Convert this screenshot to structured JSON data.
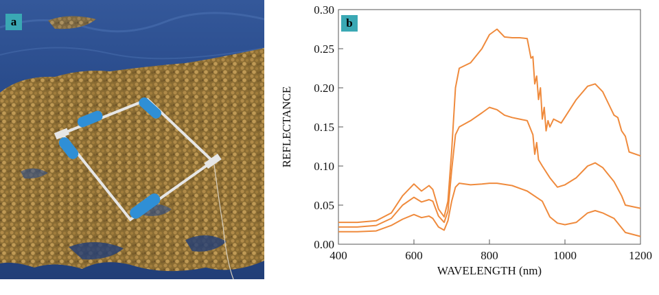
{
  "panels": {
    "a": {
      "label": "a"
    },
    "b": {
      "label": "b"
    }
  },
  "colors": {
    "series": "#ef8a3c",
    "label_bg": "#3aa8b4",
    "water": "#2a4f8f",
    "sargassum": "#9a7a3a",
    "float": "#2f8fd6",
    "frame": "#d9d9d9"
  },
  "chart_data": {
    "type": "line",
    "xlabel": "WAVELENGTH (nm)",
    "ylabel": "REFLECTANCE",
    "xlim": [
      400,
      1200
    ],
    "ylim": [
      0,
      0.3
    ],
    "xticks": [
      400,
      600,
      800,
      1000,
      1200
    ],
    "xtick_labels": [
      "400",
      "600",
      "800",
      "1000",
      "1200"
    ],
    "yticks": [
      0,
      0.05,
      0.1,
      0.15,
      0.2,
      0.25,
      0.3
    ],
    "ytick_labels": [
      "0.00",
      "0.05",
      "0.10",
      "0.15",
      "0.20",
      "0.25",
      "0.30"
    ],
    "grid": false,
    "series": [
      {
        "x": [
          400,
          450,
          500,
          540,
          570,
          600,
          620,
          640,
          650,
          665,
          680,
          690,
          700,
          710,
          720,
          750,
          780,
          800,
          820,
          840,
          860,
          880,
          900,
          910,
          915,
          920,
          925,
          930,
          935,
          940,
          945,
          950,
          955,
          960,
          970,
          990,
          1010,
          1030,
          1060,
          1080,
          1100,
          1120,
          1130,
          1140,
          1150,
          1160,
          1170,
          1200
        ],
        "y": [
          0.028,
          0.028,
          0.03,
          0.04,
          0.062,
          0.077,
          0.068,
          0.075,
          0.07,
          0.045,
          0.035,
          0.055,
          0.12,
          0.2,
          0.225,
          0.232,
          0.25,
          0.268,
          0.275,
          0.265,
          0.264,
          0.264,
          0.263,
          0.238,
          0.24,
          0.205,
          0.215,
          0.185,
          0.2,
          0.16,
          0.175,
          0.145,
          0.158,
          0.15,
          0.16,
          0.155,
          0.17,
          0.185,
          0.202,
          0.205,
          0.195,
          0.175,
          0.165,
          0.162,
          0.145,
          0.138,
          0.118,
          0.113
        ]
      },
      {
        "x": [
          400,
          450,
          500,
          540,
          570,
          600,
          620,
          640,
          650,
          665,
          680,
          690,
          700,
          710,
          720,
          750,
          780,
          800,
          820,
          840,
          860,
          880,
          900,
          915,
          920,
          925,
          930,
          940,
          960,
          980,
          1000,
          1030,
          1060,
          1080,
          1100,
          1130,
          1150,
          1160,
          1200
        ],
        "y": [
          0.022,
          0.022,
          0.024,
          0.033,
          0.05,
          0.06,
          0.054,
          0.057,
          0.055,
          0.036,
          0.028,
          0.042,
          0.095,
          0.14,
          0.15,
          0.158,
          0.168,
          0.175,
          0.172,
          0.165,
          0.162,
          0.16,
          0.158,
          0.14,
          0.115,
          0.13,
          0.108,
          0.1,
          0.085,
          0.073,
          0.076,
          0.085,
          0.1,
          0.104,
          0.098,
          0.08,
          0.062,
          0.05,
          0.046
        ]
      },
      {
        "x": [
          400,
          450,
          500,
          540,
          570,
          600,
          620,
          640,
          650,
          665,
          680,
          690,
          700,
          710,
          720,
          750,
          780,
          800,
          820,
          860,
          900,
          940,
          960,
          980,
          1000,
          1030,
          1060,
          1080,
          1100,
          1130,
          1160,
          1200
        ],
        "y": [
          0.016,
          0.016,
          0.017,
          0.024,
          0.032,
          0.038,
          0.034,
          0.036,
          0.033,
          0.022,
          0.018,
          0.03,
          0.055,
          0.073,
          0.078,
          0.076,
          0.077,
          0.078,
          0.078,
          0.075,
          0.068,
          0.055,
          0.035,
          0.027,
          0.025,
          0.028,
          0.04,
          0.043,
          0.04,
          0.033,
          0.015,
          0.01
        ]
      }
    ]
  }
}
